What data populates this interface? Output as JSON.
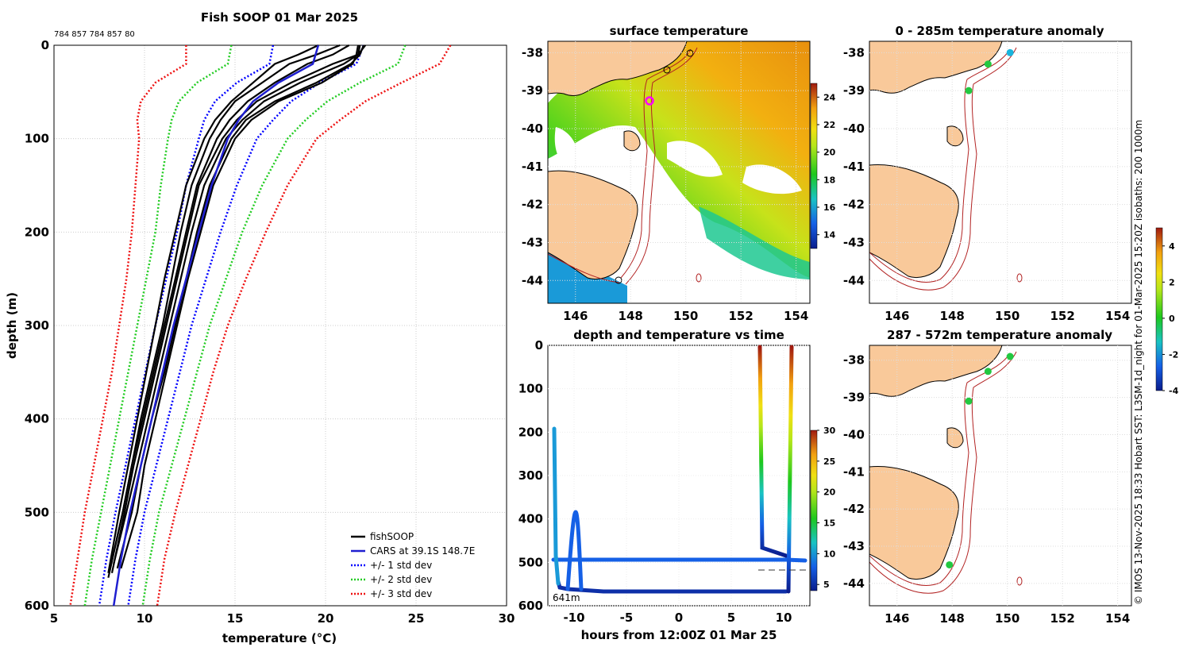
{
  "figure": {
    "footer_vertical": "© IMOS 13-Nov-2025 18:33 Hobart SST: L3SM-1d_night for 01-Mar-2025 15:20Z isobaths: 200  1000m"
  },
  "colors": {
    "land": "#f9c99a",
    "coast": "#000000",
    "isobath": "#b22222",
    "profiles": "#000000",
    "cars": "#1f1fd0",
    "std1": "#0000ff",
    "std2": "#22cc22",
    "std3": "#ee1111",
    "grid": "#cccccc"
  },
  "chart_data": [
    {
      "type": "line",
      "id": "profiles",
      "title": "Fish SOOP 01 Mar 2025",
      "subtitle": "784 857 784 857 80",
      "xlabel": "temperature (°C)",
      "ylabel": "depth (m)",
      "xlim": [
        5,
        30
      ],
      "ylim": [
        600,
        0
      ],
      "xticks": [
        5,
        10,
        15,
        20,
        25,
        30
      ],
      "yticks": [
        0,
        100,
        200,
        300,
        400,
        500,
        600
      ],
      "legend": {
        "position": "bottom-right",
        "entries": [
          "fishSOOP",
          "CARS at 39.1S 148.7E",
          "+/- 1 std dev",
          "+/- 2 std dev",
          "+/- 3 std dev"
        ]
      },
      "cars": {
        "depth": [
          0,
          20,
          40,
          60,
          80,
          100,
          150,
          200,
          250,
          300,
          350,
          400,
          450,
          500,
          550,
          600
        ],
        "temp": [
          19.6,
          19.3,
          17.4,
          16.0,
          15.2,
          14.6,
          13.7,
          13.0,
          12.3,
          11.6,
          11.0,
          10.4,
          9.8,
          9.2,
          8.7,
          8.3
        ]
      },
      "std_offsets": {
        "plus_minus_1": [
          2.5,
          2.4,
          2.3,
          2.1,
          1.9,
          1.6,
          1.4,
          1.2,
          1.1,
          1.0,
          0.95,
          0.9,
          0.85,
          0.8,
          0.8,
          0.8
        ],
        "plus_minus_2": [
          4.8,
          4.7,
          4.5,
          4.1,
          3.7,
          3.3,
          2.8,
          2.4,
          2.2,
          2.0,
          1.9,
          1.8,
          1.7,
          1.6,
          1.6,
          1.6
        ],
        "plus_minus_3": [
          7.3,
          7.0,
          6.8,
          6.2,
          5.6,
          4.9,
          4.2,
          3.7,
          3.3,
          3.0,
          2.8,
          2.7,
          2.6,
          2.5,
          2.4,
          2.4
        ]
      },
      "profiles": [
        {
          "depth": [
            0,
            10,
            20,
            40,
            60,
            80,
            100,
            150,
            200,
            250,
            300,
            350,
            400,
            450,
            500,
            560
          ],
          "temp": [
            22.1,
            21.9,
            21.4,
            19.5,
            17.2,
            15.6,
            14.8,
            13.6,
            12.9,
            12.3,
            11.7,
            11.1,
            10.4,
            9.8,
            9.3,
            8.5
          ]
        },
        {
          "depth": [
            0,
            10,
            20,
            40,
            60,
            80,
            100,
            150,
            200,
            250,
            300,
            350,
            400,
            450,
            500,
            555
          ],
          "temp": [
            21.9,
            21.8,
            21.0,
            18.6,
            16.6,
            15.4,
            14.5,
            13.3,
            12.6,
            12.0,
            11.4,
            10.8,
            10.2,
            9.6,
            9.0,
            8.3
          ]
        },
        {
          "depth": [
            0,
            10,
            20,
            40,
            60,
            80,
            100,
            150,
            200,
            250,
            300,
            350,
            400,
            450,
            500,
            565
          ],
          "temp": [
            22.2,
            21.8,
            20.4,
            18.1,
            16.2,
            15.1,
            14.3,
            13.0,
            12.4,
            11.8,
            11.2,
            10.6,
            10.0,
            9.4,
            8.9,
            8.2
          ]
        },
        {
          "depth": [
            0,
            10,
            20,
            40,
            60,
            80,
            100,
            150,
            200,
            250,
            300,
            350,
            400,
            450,
            500,
            560
          ],
          "temp": [
            20.8,
            19.5,
            18.0,
            16.5,
            15.0,
            14.2,
            13.6,
            12.6,
            12.0,
            11.5,
            11.0,
            10.4,
            9.8,
            9.3,
            8.8,
            8.1
          ]
        },
        {
          "depth": [
            0,
            10,
            20,
            40,
            60,
            80,
            100,
            150,
            200,
            250,
            300,
            350,
            400,
            450,
            500,
            570
          ],
          "temp": [
            21.3,
            20.4,
            19.0,
            17.2,
            15.7,
            14.7,
            14.0,
            12.9,
            12.3,
            11.7,
            11.1,
            10.5,
            9.9,
            9.3,
            8.8,
            8.0
          ]
        },
        {
          "depth": [
            0,
            10,
            20,
            40,
            60,
            80,
            100,
            150,
            200,
            250,
            300,
            350,
            400,
            450,
            500,
            565
          ],
          "temp": [
            19.6,
            18.5,
            17.2,
            16.0,
            14.8,
            13.9,
            13.3,
            12.3,
            11.7,
            11.1,
            10.6,
            10.1,
            9.6,
            9.1,
            8.6,
            8.0
          ]
        },
        {
          "depth": [
            0,
            10,
            20,
            40,
            60,
            80,
            100,
            150,
            200,
            250,
            300,
            350,
            400,
            450,
            500,
            560
          ],
          "temp": [
            21.8,
            21.7,
            21.5,
            19.8,
            17.4,
            15.9,
            15.0,
            13.8,
            13.1,
            12.4,
            11.8,
            11.2,
            10.6,
            10.0,
            9.6,
            8.7
          ]
        }
      ]
    },
    {
      "type": "heatmap",
      "id": "sst_map",
      "title": "surface temperature",
      "xticks": [
        146,
        148,
        150,
        152,
        154
      ],
      "yticks": [
        -38,
        -39,
        -40,
        -41,
        -42,
        -43,
        -44
      ],
      "xlim": [
        145,
        154.5
      ],
      "ylim": [
        -44.6,
        -37.7
      ],
      "colorbar": {
        "min": 13,
        "max": 25,
        "ticks": [
          14,
          16,
          18,
          20,
          22,
          24
        ]
      },
      "track_marker": {
        "lon": 148.7,
        "lat": -39.1,
        "color": "#ff00ff"
      }
    },
    {
      "type": "line",
      "id": "depth_time",
      "title": "depth and temperature vs time",
      "xlabel": "hours from 12:00Z 01 Mar 25",
      "xlim": [
        -12.5,
        12.5
      ],
      "ylim": [
        600,
        0
      ],
      "xticks": [
        -10,
        -5,
        0,
        5,
        10
      ],
      "yticks": [
        0,
        100,
        200,
        300,
        400,
        500,
        600
      ],
      "colorbar": {
        "min": 4,
        "max": 30,
        "ticks": [
          5,
          10,
          15,
          20,
          25,
          30
        ]
      },
      "annotation": "641m",
      "dashed_reference_depth": 520
    },
    {
      "type": "scatter",
      "id": "anom_upper",
      "title": "0 - 285m temperature anomaly",
      "xticks": [
        146,
        148,
        150,
        152,
        154
      ],
      "yticks": [
        -38,
        -39,
        -40,
        -41,
        -42,
        -43,
        -44
      ],
      "points": [
        {
          "lon": 150.1,
          "lat": -38.0,
          "anomaly": -1.5
        },
        {
          "lon": 149.3,
          "lat": -38.3,
          "anomaly": 0.0
        },
        {
          "lon": 148.6,
          "lat": -39.0,
          "anomaly": 0.0
        }
      ]
    },
    {
      "type": "scatter",
      "id": "anom_lower",
      "title": "287 - 572m temperature anomaly",
      "xticks": [
        146,
        148,
        150,
        152,
        154
      ],
      "yticks": [
        -38,
        -39,
        -40,
        -41,
        -42,
        -43,
        -44
      ],
      "points": [
        {
          "lon": 150.1,
          "lat": -37.9,
          "anomaly": 0.0
        },
        {
          "lon": 149.3,
          "lat": -38.3,
          "anomaly": 0.0
        },
        {
          "lon": 148.6,
          "lat": -39.1,
          "anomaly": 0.0
        },
        {
          "lon": 147.9,
          "lat": -43.5,
          "anomaly": 0.0
        }
      ],
      "colorbar": {
        "min": -4,
        "max": 5,
        "ticks": [
          -4,
          -2,
          0,
          2,
          4
        ]
      }
    }
  ]
}
